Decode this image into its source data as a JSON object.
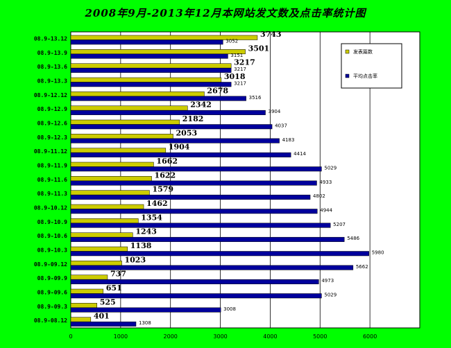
{
  "chart_data": {
    "type": "bar",
    "orientation": "horizontal",
    "title": "2008年9月-2013年12月本网站发文数及点击率统计图",
    "categories": [
      "08.9-13.12",
      "08.9-13.9",
      "08.9-13.6",
      "08.9-13.3",
      "08.9-12.12",
      "08.9-12.9",
      "08.9-12.6",
      "08.9-12.3",
      "08.9-11.12",
      "08.9-11.9",
      "08.9-11.6",
      "08.9-11.3",
      "08.9-10.12",
      "08.9-10.9",
      "08.9-10.6",
      "08.9-10.3",
      "08.9-09.12",
      "08.9-09.9",
      "08.9-09.6",
      "08.9-09.3",
      "08.9-08.12"
    ],
    "series": [
      {
        "name": "发表篇数",
        "color": "#cccc00",
        "values": [
          3743,
          3501,
          3217,
          3018,
          2678,
          2342,
          2182,
          2053,
          1904,
          1662,
          1622,
          1579,
          1462,
          1354,
          1243,
          1138,
          1023,
          737,
          651,
          525,
          401
        ]
      },
      {
        "name": "平均点击率",
        "color": "#00009c",
        "values": [
          3052,
          3151,
          3217,
          3217,
          3516,
          3904,
          4037,
          4183,
          4414,
          5029,
          4933,
          4802,
          4944,
          5207,
          5486,
          5980,
          5662,
          4973,
          5029,
          3008,
          1308
        ]
      }
    ],
    "xlim": [
      0,
      7000
    ],
    "xticks": [
      0,
      1000,
      2000,
      3000,
      4000,
      5000,
      6000
    ],
    "grid": true,
    "legend_position": "top-right"
  }
}
